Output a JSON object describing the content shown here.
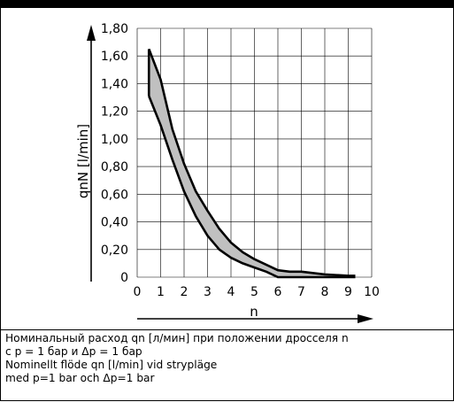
{
  "chart_data": {
    "type": "area",
    "xlabel": "n",
    "ylabel": "qnN  [l/min]",
    "xlim": [
      0,
      10
    ],
    "ylim": [
      0,
      1.8
    ],
    "x_ticks": [
      "0",
      "1",
      "2",
      "3",
      "4",
      "5",
      "6",
      "7",
      "8",
      "9",
      "10"
    ],
    "y_ticks": [
      "0",
      "0,20",
      "0,40",
      "0,60",
      "0,80",
      "1,00",
      "1,20",
      "1,40",
      "1,60",
      "1,80"
    ],
    "grid": true,
    "series": [
      {
        "x": [
          0.5,
          1,
          1.5,
          2,
          2.5,
          3,
          3.5,
          4,
          4.5,
          5,
          5.5,
          6,
          6.5,
          7,
          8,
          9,
          9.3
        ],
        "values": [
          1.65,
          1.43,
          1.07,
          0.82,
          0.62,
          0.48,
          0.35,
          0.25,
          0.18,
          0.13,
          0.09,
          0.05,
          0.04,
          0.04,
          0.02,
          0.01,
          0.01
        ]
      },
      {
        "x": [
          0.5,
          1,
          1.5,
          2,
          2.5,
          3,
          3.5,
          4,
          4.5,
          5,
          5.5,
          6,
          7,
          8,
          9,
          9.3
        ],
        "values": [
          1.31,
          1.1,
          0.85,
          0.62,
          0.44,
          0.3,
          0.2,
          0.14,
          0.1,
          0.07,
          0.04,
          0.0,
          0.0,
          0.0,
          0.0,
          0.0
        ]
      }
    ]
  },
  "caption": {
    "line1": "Номинальный расход qn [л/мин] при положении дросселя n",
    "line2": "с p = 1 бар и Δp = 1 бар",
    "line3": "Nominellt flöde qn [l/min] vid strypläge",
    "line4": "med p=1 bar och Δp=1 bar"
  },
  "colors": {
    "fill": "#c0c0c0",
    "line": "#000000",
    "grid": "#000000"
  }
}
